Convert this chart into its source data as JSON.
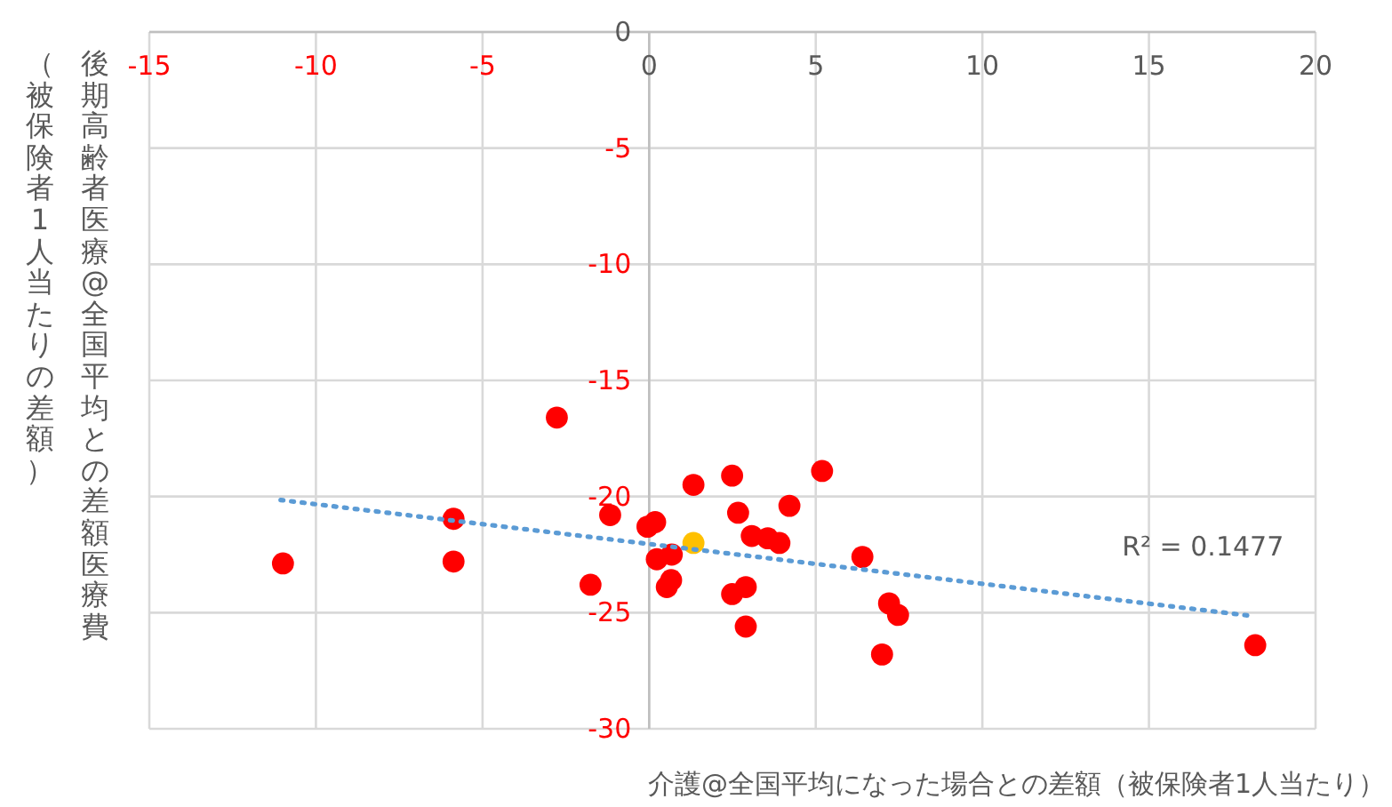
{
  "chart_data": {
    "type": "scatter",
    "xlabel": "介護@全国平均になった場合との差額（被保険者1人当たり）",
    "ylabel": "後期高齢者医療@全国平均との差額医療費（被保険者1人当たりの差額）",
    "xlim": [
      -15,
      20
    ],
    "ylim": [
      -30,
      0
    ],
    "xticks": [
      -15,
      -10,
      -5,
      0,
      5,
      10,
      15,
      20
    ],
    "yticks": [
      -30,
      -25,
      -20,
      -15,
      -10,
      -5,
      0
    ],
    "grid": true,
    "legend": false,
    "marker": "circle",
    "annotations": [
      "R² = 0.1477"
    ],
    "series": [
      {
        "color": "#ff0000",
        "x": [
          -10.99,
          -5.87,
          -5.87,
          -2.77,
          -1.76,
          -1.17,
          -0.05,
          0.18,
          0.23,
          0.68,
          0.66,
          0.53,
          1.33,
          2.49,
          2.67,
          3.08,
          3.56,
          3.91,
          4.21,
          5.19,
          2.49,
          2.9,
          2.9,
          6.4,
          7.2,
          7.47,
          6.99,
          18.19
        ],
        "values": [
          -22.88,
          -20.96,
          -22.8,
          -16.6,
          -23.8,
          -20.8,
          -21.3,
          -21.1,
          -22.7,
          -22.5,
          -23.6,
          -23.9,
          -19.5,
          -19.1,
          -20.7,
          -21.7,
          -21.8,
          -22.0,
          -20.4,
          -18.9,
          -24.2,
          -23.9,
          -25.6,
          -22.6,
          -24.6,
          -25.1,
          -26.8,
          -26.4
        ]
      },
      {
        "color": "#ffc000",
        "x": [
          1.33
        ],
        "values": [
          -22.0
        ]
      },
      {
        "type": "line",
        "line_style": "dotted",
        "marker": "none",
        "color": "#5b9bd5",
        "x": [
          -11.06,
          18.14
        ],
        "values": [
          -20.15,
          -25.15
        ]
      }
    ]
  }
}
